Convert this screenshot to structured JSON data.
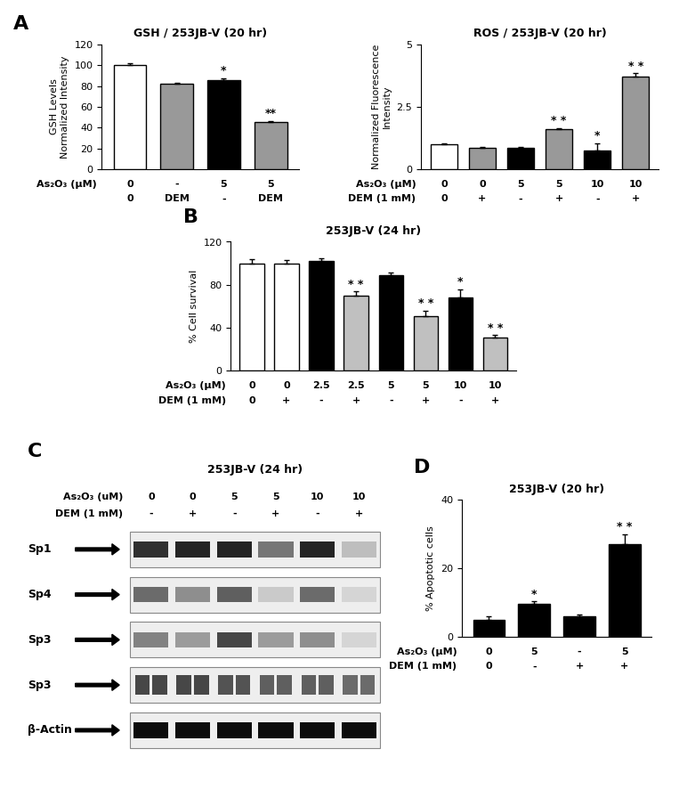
{
  "chart_data": [
    {
      "type": "bar",
      "panel_label": "A",
      "title": "GSH / 253JB-V (20 hr)",
      "y_label": "GSH Levels\nNormalized Intensity",
      "values": [
        100,
        82,
        86,
        45
      ],
      "errors": [
        2,
        1,
        1.5,
        1.5
      ],
      "colors": [
        "#ffffff",
        "#999999",
        "#000000",
        "#999999"
      ],
      "significance": [
        null,
        null,
        "*",
        "**"
      ],
      "condition_rows": [
        {
          "label": "As₂O₃ (μM)",
          "values": [
            "0",
            "-",
            "5",
            "5"
          ]
        },
        {
          "label": "",
          "values": [
            "0",
            "DEM",
            "-",
            "DEM"
          ]
        }
      ],
      "ylim": [
        0,
        120
      ],
      "yticks": [
        0,
        20,
        40,
        60,
        80,
        100,
        120
      ]
    },
    {
      "type": "bar",
      "panel_label": null,
      "title": "ROS / 253JB-V (20 hr)",
      "y_label": "Normalized Fluorescence\nIntensity",
      "values": [
        1.0,
        0.85,
        0.85,
        1.6,
        0.75,
        3.7
      ],
      "errors": [
        0.05,
        0.03,
        0.03,
        0.05,
        0.3,
        0.15
      ],
      "colors": [
        "#ffffff",
        "#999999",
        "#000000",
        "#999999",
        "#000000",
        "#999999"
      ],
      "significance": [
        null,
        null,
        null,
        "* *",
        "*",
        "* *"
      ],
      "condition_rows": [
        {
          "label": "As₂O₃ (μM)",
          "values": [
            "0",
            "0",
            "5",
            "5",
            "10",
            "10"
          ]
        },
        {
          "label": "DEM (1 mM)",
          "values": [
            "0",
            "+",
            "-",
            "+",
            "-",
            "+"
          ]
        }
      ],
      "ylim": [
        0,
        5
      ],
      "yticks": [
        0,
        2.5,
        5
      ]
    },
    {
      "type": "bar",
      "panel_label": "B",
      "title": "253JB-V (24 hr)",
      "y_label": "% Cell survival",
      "values": [
        100,
        100,
        102,
        70,
        89,
        51,
        68,
        31
      ],
      "errors": [
        4,
        3,
        3,
        4,
        2,
        5,
        8,
        2
      ],
      "colors": [
        "#ffffff",
        "#ffffff",
        "#000000",
        "#c0c0c0",
        "#000000",
        "#c0c0c0",
        "#000000",
        "#c0c0c0"
      ],
      "significance": [
        null,
        null,
        null,
        "* *",
        null,
        "* *",
        "*",
        "* *"
      ],
      "condition_rows": [
        {
          "label": "As₂O₃ (μM)",
          "values": [
            "0",
            "0",
            "2.5",
            "2.5",
            "5",
            "5",
            "10",
            "10"
          ]
        },
        {
          "label": "DEM (1 mM)",
          "values": [
            "0",
            "+",
            "-",
            "+",
            "-",
            "+",
            "-",
            "+"
          ]
        }
      ],
      "ylim": [
        0,
        120
      ],
      "yticks": [
        0,
        40,
        80,
        120
      ]
    },
    {
      "type": "bar",
      "panel_label": "D",
      "title": "253JB-V (20 hr)",
      "y_label": "% Apoptotic cells",
      "values": [
        5,
        9.5,
        6,
        27
      ],
      "errors": [
        1,
        0.8,
        0.5,
        3
      ],
      "colors": [
        "#000000",
        "#000000",
        "#000000",
        "#000000"
      ],
      "significance": [
        null,
        "*",
        null,
        "* *"
      ],
      "condition_rows": [
        {
          "label": "As₂O₃ (μM)",
          "values": [
            "0",
            "5",
            "-",
            "5"
          ]
        },
        {
          "label": "DEM (1 mM)",
          "values": [
            "0",
            "-",
            "+",
            "+"
          ]
        }
      ],
      "ylim": [
        0,
        40
      ],
      "yticks": [
        0,
        20,
        40
      ]
    }
  ],
  "blot": {
    "panel_label": "C",
    "title": "253JB-V (24 hr)",
    "condition_rows": [
      {
        "label": "As₂O₃ (uM)",
        "values": [
          "0",
          "0",
          "5",
          "5",
          "10",
          "10"
        ]
      },
      {
        "label": "DEM (1 mM)",
        "values": [
          "-",
          "+",
          "-",
          "+",
          "-",
          "+"
        ]
      }
    ],
    "bands": [
      {
        "label": "Sp1",
        "intensity": [
          0.8,
          0.85,
          0.85,
          0.5,
          0.85,
          0.2
        ],
        "bands_per_lane": 1
      },
      {
        "label": "Sp4",
        "intensity": [
          0.55,
          0.4,
          0.6,
          0.15,
          0.55,
          0.1
        ],
        "bands_per_lane": 1
      },
      {
        "label": "Sp3",
        "intensity": [
          0.45,
          0.35,
          0.7,
          0.35,
          0.4,
          0.1
        ],
        "bands_per_lane": 1
      },
      {
        "label": "Sp3",
        "intensity": [
          0.7,
          0.7,
          0.65,
          0.6,
          0.6,
          0.55
        ],
        "bands_per_lane": 2
      },
      {
        "label": "β-Actin",
        "intensity": [
          0.95,
          0.95,
          0.95,
          0.95,
          0.95,
          0.95
        ],
        "bands_per_lane": 1
      }
    ]
  }
}
